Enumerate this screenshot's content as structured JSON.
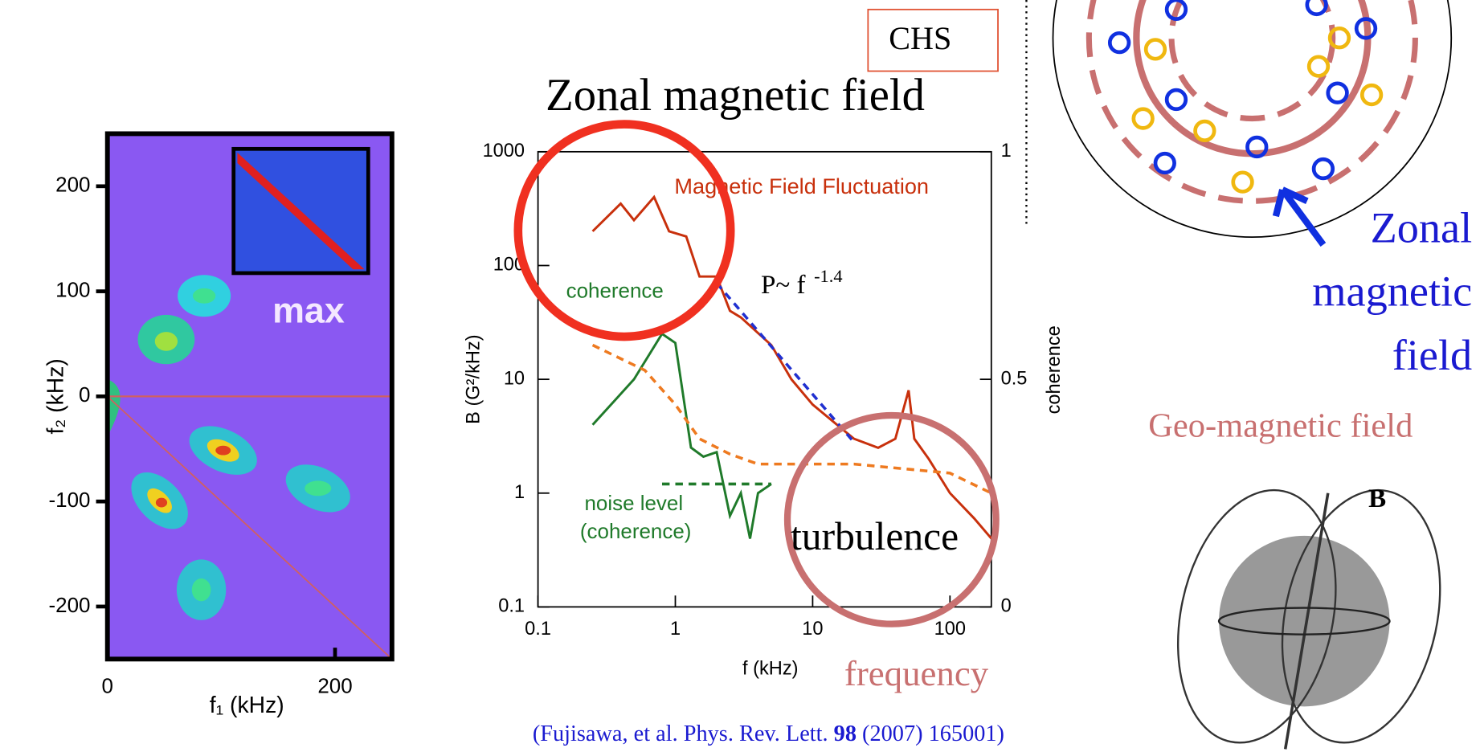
{
  "chart_data": [
    {
      "type": "heatmap",
      "xlabel": "f₁ (kHz)",
      "ylabel": "f₂ (kHz)",
      "annotation": "max",
      "xlim": [
        0,
        250
      ],
      "ylim": [
        -250,
        250
      ],
      "xticks": [
        0,
        200
      ],
      "yticks": [
        -200,
        -100,
        0,
        100,
        200
      ]
    },
    {
      "type": "line",
      "title": "Zonal magnetic field",
      "xlabel": "f (kHz)",
      "ylabel": "B (G²/kHz)",
      "y2label": "coherence",
      "log_x": true,
      "log_y": true,
      "xlim": [
        0.1,
        200
      ],
      "ylim": [
        0.1,
        1000
      ],
      "y2lim": [
        0,
        1
      ],
      "xticks": [
        0.1,
        1,
        10,
        100
      ],
      "yticks": [
        0.1,
        1,
        10,
        100,
        1000
      ],
      "y2ticks": [
        0,
        0.5,
        1
      ],
      "series": [
        {
          "name": "Magnetic Field Fluctuation",
          "color": "#c8300c",
          "style": "solid",
          "x": [
            0.25,
            0.4,
            0.5,
            0.7,
            0.9,
            1.2,
            1.5,
            2,
            2.5,
            3,
            5,
            7,
            10,
            15,
            20,
            30,
            40,
            50,
            55,
            70,
            100,
            150,
            200
          ],
          "values": [
            200,
            350,
            250,
            400,
            200,
            180,
            80,
            80,
            40,
            35,
            20,
            10,
            6,
            4,
            3,
            2.5,
            3,
            8,
            3,
            2,
            1,
            0.6,
            0.4
          ]
        },
        {
          "name": "coherence",
          "color": "#1f7a2a",
          "style": "solid",
          "axis": "y2",
          "x": [
            0.25,
            0.5,
            0.8,
            1,
            1.3,
            1.6,
            2,
            2.5,
            3,
            3.5,
            4,
            5
          ],
          "values": [
            0.4,
            0.5,
            0.6,
            0.58,
            0.35,
            0.33,
            0.34,
            0.2,
            0.25,
            0.15,
            0.25,
            0.27
          ]
        },
        {
          "color": "#2030d0",
          "style": "dashed",
          "x": [
            2,
            20
          ],
          "values": [
            70,
            2.8
          ]
        },
        {
          "color": "#ee7a20",
          "style": "dashed",
          "x": [
            0.25,
            0.6,
            1,
            1.5,
            2.5,
            4,
            10,
            20,
            100,
            200
          ],
          "values": [
            20,
            12,
            6,
            3,
            2.2,
            1.8,
            1.8,
            1.8,
            1.5,
            1
          ]
        },
        {
          "color": "#1f7a2a",
          "style": "dashed",
          "axis": "y2",
          "x": [
            0.8,
            5
          ],
          "values": [
            0.27,
            0.27
          ]
        }
      ],
      "annotations": {
        "noise": "noise level",
        "noise2": "(coherence)",
        "fit": "P~ f",
        "fit_exp": "-1.4",
        "turbulence": "turbulence",
        "frequency": "frequency",
        "box": "CHS"
      }
    }
  ],
  "citation": {
    "pre": "(Fujisawa, et al. Phys. Rev. Lett. ",
    "volume": "98",
    "post": " (2007) 165001)"
  },
  "right": {
    "zonal": [
      "Zonal",
      "magnetic",
      "field"
    ],
    "geo": "Geo-magnetic field",
    "b": "B"
  }
}
